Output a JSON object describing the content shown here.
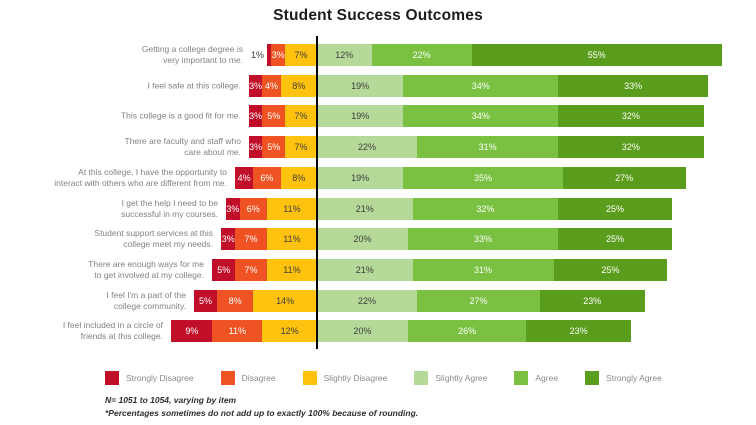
{
  "chart_data": {
    "type": "bar",
    "subtype": "diverging-stacked-horizontal",
    "title": "Student Success Outcomes",
    "unit": "%",
    "legend_position": "bottom",
    "axis": {
      "baseline": "zero-divider",
      "gridlines": false,
      "tick_labels": false
    },
    "response_options": [
      {
        "label": "Strongly Disagree",
        "color": "#C10E29",
        "text_color": "#ffffff",
        "side": "negative"
      },
      {
        "label": "Disagree",
        "color": "#F05323",
        "text_color": "#ffffff",
        "side": "negative"
      },
      {
        "label": "Slightly Disagree",
        "color": "#FFC20E",
        "text_color": "#3d3d3d",
        "side": "negative"
      },
      {
        "label": "Slightly Agree",
        "color": "#B5D998",
        "text_color": "#3d3d3d",
        "side": "positive"
      },
      {
        "label": "Agree",
        "color": "#7AC142",
        "text_color": "#ffffff",
        "side": "positive"
      },
      {
        "label": "Strongly Agree",
        "color": "#5A9C1B",
        "text_color": "#ffffff",
        "side": "positive"
      }
    ],
    "items": [
      {
        "label_lines": [
          "Getting a college degree is",
          "very important to me."
        ],
        "values": [
          1,
          3,
          7,
          12,
          22,
          55
        ]
      },
      {
        "label_lines": [
          "I feel safe at this college."
        ],
        "values": [
          3,
          4,
          8,
          19,
          34,
          33
        ]
      },
      {
        "label_lines": [
          "This college is a good fit for me."
        ],
        "values": [
          3,
          5,
          7,
          19,
          34,
          32
        ]
      },
      {
        "label_lines": [
          "There are faculty and staff who",
          "care about me."
        ],
        "values": [
          3,
          5,
          7,
          22,
          31,
          32
        ]
      },
      {
        "label_lines": [
          "At this college, I have the opportunity to",
          "interact with others who are different from me."
        ],
        "values": [
          4,
          6,
          8,
          19,
          35,
          27
        ]
      },
      {
        "label_lines": [
          "I get the help I need to be",
          "successful in my courses."
        ],
        "values": [
          3,
          6,
          11,
          21,
          32,
          25
        ]
      },
      {
        "label_lines": [
          "Student support services at this",
          "college meet my needs."
        ],
        "values": [
          3,
          7,
          11,
          20,
          33,
          25
        ]
      },
      {
        "label_lines": [
          "There are enough ways for me",
          "to get involved at my college."
        ],
        "values": [
          5,
          7,
          11,
          21,
          31,
          25
        ]
      },
      {
        "label_lines": [
          "I feel I'm a part of the",
          "college community."
        ],
        "values": [
          5,
          8,
          14,
          22,
          27,
          23
        ]
      },
      {
        "label_lines": [
          "I feel included in a circle of",
          "friends at this college."
        ],
        "values": [
          9,
          11,
          12,
          20,
          26,
          23
        ]
      }
    ],
    "notes": [
      "N= 1051 to 1054, varying by item",
      "*Percentages sometimes do not add up to exactly 100% because of rounding."
    ]
  }
}
